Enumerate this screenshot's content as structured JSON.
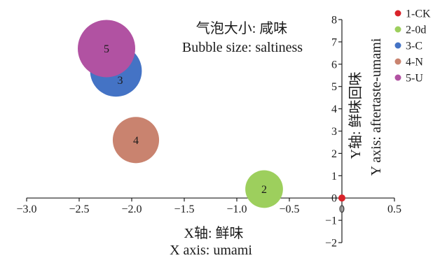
{
  "chart_data": {
    "type": "scatter",
    "annotation": [
      "气泡大小: 咸味",
      "Bubble size: saltiness"
    ],
    "x_axis": {
      "title": [
        "X轴: 鲜味",
        "X axis: umami"
      ],
      "range": [
        -3,
        0.5
      ],
      "crosses_at": 0,
      "ticks": [
        {
          "value": -3,
          "label": "−3.0"
        },
        {
          "value": -2.5,
          "label": "−2.5"
        },
        {
          "value": -2,
          "label": "−2.0"
        },
        {
          "value": -1.5,
          "label": "−1.5"
        },
        {
          "value": -1,
          "label": "−1.0"
        },
        {
          "value": -0.5,
          "label": "−0.5"
        },
        {
          "value": 0,
          "label": "0"
        },
        {
          "value": 0.5,
          "label": "0.5"
        }
      ]
    },
    "y_axis": {
      "title": [
        "Y轴: 鲜味回味",
        "Y axis: aftertaste-umami"
      ],
      "range": [
        -2,
        8
      ],
      "crosses_at": 0,
      "ticks": [
        {
          "value": 8,
          "label": "8"
        },
        {
          "value": 7,
          "label": "7"
        },
        {
          "value": 6,
          "label": "6"
        },
        {
          "value": 5,
          "label": "5"
        },
        {
          "value": 4,
          "label": "4"
        },
        {
          "value": 3,
          "label": "3"
        },
        {
          "value": 2,
          "label": "2"
        },
        {
          "value": 1,
          "label": "1"
        },
        {
          "value": 0,
          "label": "0"
        },
        {
          "value": -1,
          "label": "−1"
        },
        {
          "value": -2,
          "label": "−2"
        }
      ]
    },
    "grid": false,
    "legend_position": "top-right",
    "series": [
      {
        "name": "1-CK",
        "x": 0,
        "y": 0,
        "size": 0.015,
        "color": "#d9232a"
      },
      {
        "name": "2-0d",
        "label": "2",
        "x": -0.74,
        "y": 0.4,
        "size": 0.43,
        "color": "#9dcf5d"
      },
      {
        "name": "3-C",
        "label": "3",
        "x": -2.15,
        "y": 5.7,
        "size": 0.81,
        "color": "#4473c5"
      },
      {
        "name": "4-N",
        "label": "4",
        "x": -1.96,
        "y": 2.6,
        "size": 0.65,
        "color": "#c9836f"
      },
      {
        "name": "5-U",
        "label": "5",
        "x": -2.24,
        "y": 6.7,
        "size": 1.0,
        "color": "#b152a2"
      }
    ]
  }
}
